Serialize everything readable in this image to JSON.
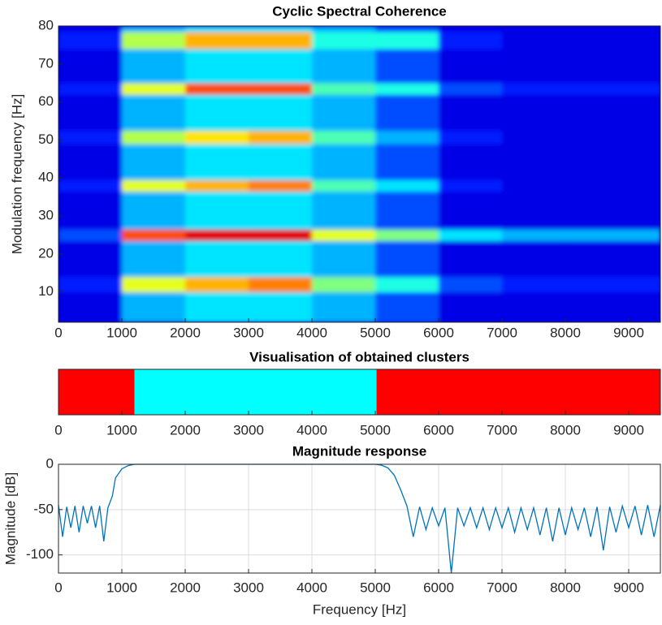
{
  "chart_data": [
    {
      "type": "heatmap",
      "title": "Cyclic Spectral Coherence",
      "ylabel": "Modulation frequency [Hz]",
      "x_edges": [
        0,
        1000,
        2000,
        3000,
        4000,
        5000,
        6000,
        7000,
        8000,
        9500
      ],
      "y_edges": [
        2,
        10,
        14,
        23.5,
        26.5,
        36.5,
        39.5,
        49,
        52.5,
        62,
        65,
        74,
        78.5,
        80
      ],
      "z": [
        [
          0.1,
          0.3,
          0.35,
          0.35,
          0.3,
          0.2,
          0.1,
          0.1,
          0.1
        ],
        [
          0.15,
          0.6,
          0.7,
          0.75,
          0.5,
          0.4,
          0.2,
          0.15,
          0.15
        ],
        [
          0.1,
          0.3,
          0.35,
          0.35,
          0.3,
          0.2,
          0.1,
          0.1,
          0.1
        ],
        [
          0.2,
          0.8,
          0.9,
          0.9,
          0.6,
          0.5,
          0.35,
          0.3,
          0.3
        ],
        [
          0.1,
          0.3,
          0.35,
          0.35,
          0.3,
          0.2,
          0.1,
          0.1,
          0.1
        ],
        [
          0.15,
          0.6,
          0.7,
          0.75,
          0.45,
          0.35,
          0.15,
          0.1,
          0.1
        ],
        [
          0.1,
          0.3,
          0.35,
          0.35,
          0.3,
          0.2,
          0.1,
          0.1,
          0.1
        ],
        [
          0.15,
          0.55,
          0.65,
          0.7,
          0.45,
          0.3,
          0.15,
          0.1,
          0.1
        ],
        [
          0.1,
          0.3,
          0.35,
          0.35,
          0.3,
          0.2,
          0.1,
          0.1,
          0.1
        ],
        [
          0.15,
          0.6,
          0.8,
          0.8,
          0.45,
          0.4,
          0.2,
          0.15,
          0.15
        ],
        [
          0.1,
          0.3,
          0.35,
          0.35,
          0.3,
          0.2,
          0.1,
          0.1,
          0.1
        ],
        [
          0.15,
          0.55,
          0.7,
          0.7,
          0.4,
          0.4,
          0.15,
          0.1,
          0.1
        ],
        [
          0.1,
          0.3,
          0.35,
          0.35,
          0.3,
          0.2,
          0.1,
          0.1,
          0.1
        ]
      ],
      "xlim": [
        0,
        9500
      ],
      "xticks": [
        0,
        1000,
        2000,
        3000,
        4000,
        5000,
        6000,
        7000,
        8000,
        9000
      ],
      "ylim": [
        2,
        80
      ],
      "yticks": [
        10,
        20,
        30,
        40,
        50,
        60,
        70,
        80
      ]
    },
    {
      "type": "span",
      "title": "Visualisation of obtained clusters",
      "segments": [
        {
          "start": 0,
          "end": 1200,
          "color": "#ff0000"
        },
        {
          "start": 1200,
          "end": 5020,
          "color": "#00ffff"
        },
        {
          "start": 5020,
          "end": 9500,
          "color": "#ff0000"
        }
      ],
      "xlim": [
        0,
        9500
      ],
      "xticks": [
        0,
        1000,
        2000,
        3000,
        4000,
        5000,
        6000,
        7000,
        8000,
        9000
      ]
    },
    {
      "type": "line",
      "title": "Magnitude response",
      "xlabel": "Frequency [Hz]",
      "ylabel": "Magnitude [dB]",
      "grid": true,
      "color": "#0072bd",
      "x": [
        0,
        65,
        130,
        195,
        260,
        325,
        390,
        455,
        520,
        585,
        650,
        715,
        780,
        850,
        900,
        1000,
        1100,
        1200,
        5000,
        5100,
        5200,
        5300,
        5400,
        5500,
        5600,
        5700,
        5800,
        5900,
        6000,
        6100,
        6200,
        6300,
        6400,
        6500,
        6600,
        6700,
        6800,
        6900,
        7000,
        7100,
        7200,
        7300,
        7400,
        7500,
        7600,
        7700,
        7800,
        7900,
        8000,
        8100,
        8200,
        8300,
        8400,
        8500,
        8600,
        8700,
        8800,
        8900,
        9000,
        9100,
        9200,
        9300,
        9400,
        9500
      ],
      "values": [
        -45,
        -80,
        -47,
        -70,
        -46,
        -75,
        -46,
        -65,
        -46,
        -70,
        -46,
        -85,
        -48,
        -35,
        -15,
        -5,
        -1.5,
        0,
        0,
        -1,
        -4,
        -12,
        -28,
        -46,
        -80,
        -47,
        -72,
        -48,
        -68,
        -48,
        -120,
        -48,
        -68,
        -48,
        -70,
        -48,
        -72,
        -48,
        -70,
        -48,
        -75,
        -48,
        -72,
        -48,
        -78,
        -48,
        -85,
        -48,
        -78,
        -48,
        -72,
        -48,
        -80,
        -47,
        -95,
        -47,
        -75,
        -46,
        -70,
        -46,
        -78,
        -45,
        -80,
        -45
      ],
      "xlim": [
        0,
        9500
      ],
      "xticks": [
        0,
        1000,
        2000,
        3000,
        4000,
        5000,
        6000,
        7000,
        8000,
        9000
      ],
      "ylim": [
        -120,
        0
      ],
      "yticks": [
        -100,
        -50,
        0
      ]
    }
  ]
}
